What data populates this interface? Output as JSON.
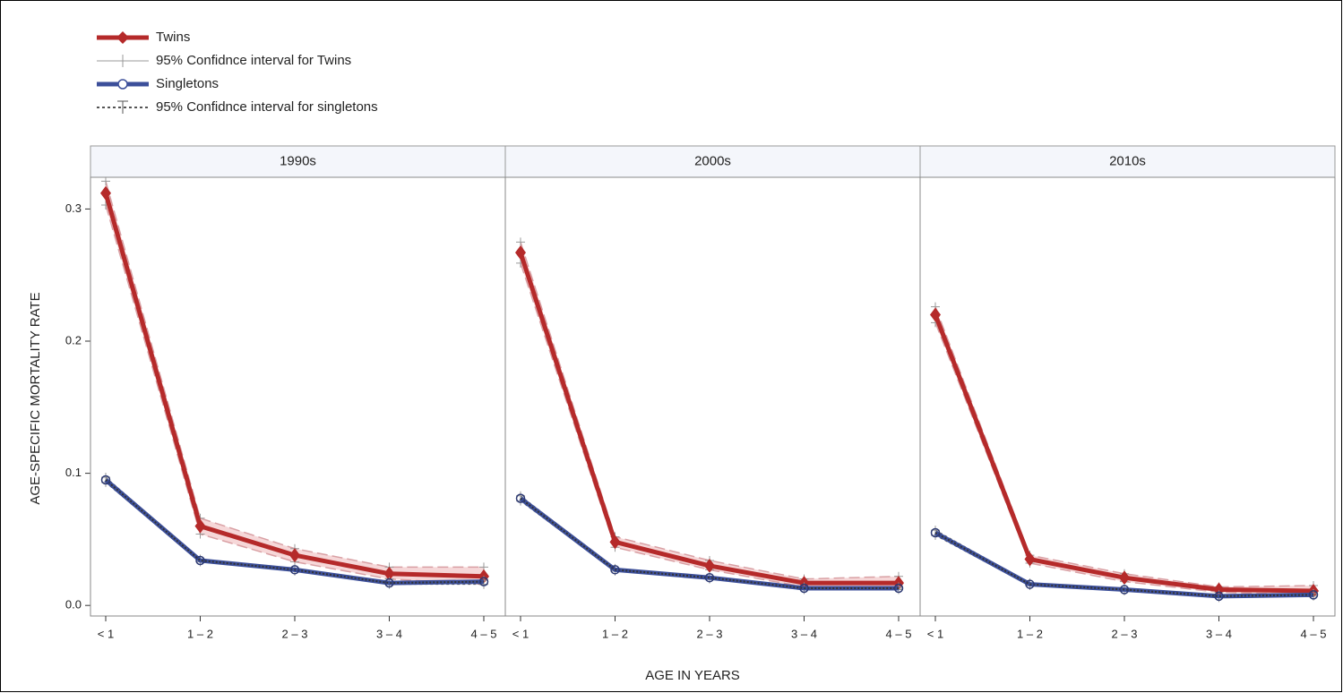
{
  "chart_data": {
    "type": "line",
    "xlabel": "AGE IN YEARS",
    "ylabel": "AGE-SPECIFIC MORTALITY RATE",
    "categories": [
      "< 1",
      "1 – 2",
      "2 – 3",
      "3 – 4",
      "4 – 5"
    ],
    "ylim": [
      -0.008,
      0.324
    ],
    "yticks": [
      {
        "value": 0,
        "label": "0.0"
      },
      0.1,
      0.2,
      0.3
    ],
    "series": [
      {
        "name": "Twins",
        "color": "#b52a2a"
      },
      {
        "name": "95% Confidnce interval for Twins",
        "color": "#999999"
      },
      {
        "name": "Singletons",
        "color": "#3c4f9a"
      },
      {
        "name": "95% Confidnce interval for singletons",
        "color": "#555555"
      }
    ],
    "panels": [
      {
        "title": "1990s",
        "series": [
          {
            "values": [
              0.312,
              0.06,
              0.038,
              0.024,
              0.022
            ]
          },
          {
            "lower": [
              0.303,
              0.054,
              0.033,
              0.02,
              0.016
            ],
            "upper": [
              0.321,
              0.066,
              0.043,
              0.029,
              0.029
            ]
          },
          {
            "values": [
              0.095,
              0.034,
              0.027,
              0.017,
              0.018
            ]
          },
          {
            "lower": [
              0.093,
              0.033,
              0.026,
              0.016,
              0.016
            ],
            "upper": [
              0.097,
              0.035,
              0.028,
              0.018,
              0.019
            ]
          }
        ]
      },
      {
        "title": "2000s",
        "series": [
          {
            "values": [
              0.267,
              0.048,
              0.03,
              0.017,
              0.017
            ]
          },
          {
            "lower": [
              0.259,
              0.044,
              0.027,
              0.014,
              0.013
            ],
            "upper": [
              0.275,
              0.052,
              0.034,
              0.02,
              0.022
            ]
          },
          {
            "values": [
              0.081,
              0.027,
              0.021,
              0.013,
              0.013
            ]
          },
          {
            "lower": [
              0.079,
              0.026,
              0.02,
              0.012,
              0.012
            ],
            "upper": [
              0.083,
              0.028,
              0.022,
              0.014,
              0.014
            ]
          }
        ]
      },
      {
        "title": "2010s",
        "series": [
          {
            "values": [
              0.22,
              0.035,
              0.021,
              0.012,
              0.011
            ]
          },
          {
            "lower": [
              0.214,
              0.032,
              0.018,
              0.01,
              0.008
            ],
            "upper": [
              0.226,
              0.038,
              0.024,
              0.014,
              0.015
            ]
          },
          {
            "values": [
              0.055,
              0.016,
              0.012,
              0.007,
              0.008
            ]
          },
          {
            "lower": [
              0.053,
              0.015,
              0.011,
              0.006,
              0.007
            ],
            "upper": [
              0.057,
              0.017,
              0.013,
              0.008,
              0.009
            ]
          }
        ]
      }
    ]
  }
}
